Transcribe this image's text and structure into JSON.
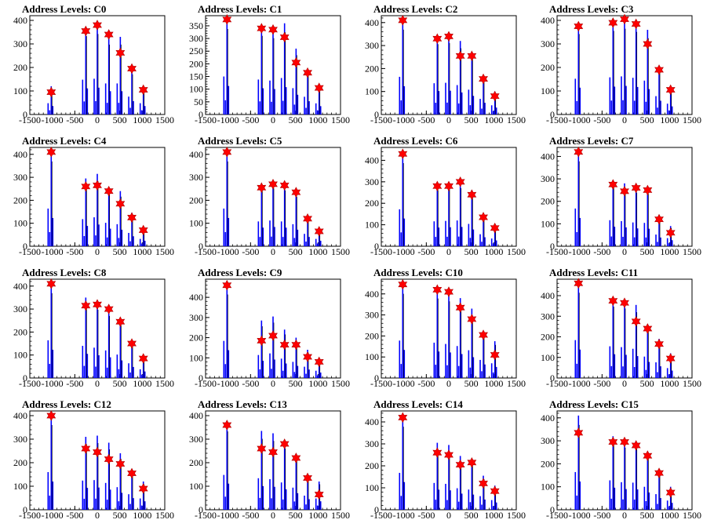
{
  "chart_data": [
    {
      "type": "bar",
      "title": "Address Levels: C0",
      "xlim": [
        -1500,
        1500
      ],
      "ylim": [
        0,
        420
      ],
      "yticks": [
        0,
        100,
        200,
        300,
        400
      ],
      "xtick_labels": [
        "-1500",
        "-1000",
        "-500",
        "0",
        "500",
        "1000",
        "1500"
      ],
      "x": [
        -1024,
        -256,
        0,
        256,
        512,
        768,
        1024
      ],
      "histogram_peaks": [
        120,
        370,
        380,
        330,
        330,
        190,
        120
      ],
      "marker_values": [
        95,
        355,
        380,
        340,
        262,
        195,
        105
      ]
    },
    {
      "type": "bar",
      "title": "Address Levels: C1",
      "xlim": [
        -1500,
        1500
      ],
      "ylim": [
        0,
        390
      ],
      "yticks": [
        0,
        50,
        100,
        150,
        200,
        250,
        300,
        350
      ],
      "xtick_labels": [
        "-1500",
        "-1000",
        "-500",
        "0",
        "500",
        "1000",
        "1500"
      ],
      "x": [
        -1024,
        -256,
        0,
        256,
        512,
        768,
        1024
      ],
      "histogram_peaks": [
        375,
        345,
        335,
        360,
        260,
        175,
        110
      ],
      "marker_values": [
        375,
        340,
        335,
        305,
        205,
        165,
        105
      ]
    },
    {
      "type": "bar",
      "title": "Address Levels: C2",
      "xlim": [
        -1500,
        1500
      ],
      "ylim": [
        0,
        430
      ],
      "yticks": [
        0,
        100,
        200,
        300,
        400
      ],
      "xtick_labels": [
        "-1500",
        "-1000",
        "-500",
        "0",
        "500",
        "1000",
        "1500"
      ],
      "x": [
        -1024,
        -256,
        0,
        256,
        512,
        768,
        1024
      ],
      "histogram_peaks": [
        410,
        340,
        345,
        320,
        270,
        170,
        100
      ],
      "marker_values": [
        410,
        330,
        340,
        255,
        255,
        155,
        80
      ]
    },
    {
      "type": "bar",
      "title": "Address Levels: C3",
      "xlim": [
        -1500,
        1500
      ],
      "ylim": [
        0,
        420
      ],
      "yticks": [
        0,
        100,
        200,
        300,
        400
      ],
      "xtick_labels": [
        "-1500",
        "-1000",
        "-500",
        "0",
        "500",
        "1000",
        "1500"
      ],
      "x": [
        -1024,
        -256,
        0,
        256,
        512,
        768,
        1024
      ],
      "histogram_peaks": [
        380,
        395,
        405,
        390,
        360,
        195,
        115
      ],
      "marker_values": [
        375,
        390,
        405,
        385,
        300,
        190,
        105
      ]
    },
    {
      "type": "bar",
      "title": "Address Levels: C4",
      "xlim": [
        -1500,
        1500
      ],
      "ylim": [
        0,
        430
      ],
      "yticks": [
        0,
        100,
        200,
        300,
        400
      ],
      "xtick_labels": [
        "-1500",
        "-1000",
        "-500",
        "0",
        "500",
        "1000",
        "1500"
      ],
      "x": [
        -1024,
        -256,
        0,
        256,
        512,
        768,
        1024
      ],
      "histogram_peaks": [
        410,
        295,
        315,
        255,
        240,
        145,
        80
      ],
      "marker_values": [
        410,
        260,
        265,
        240,
        185,
        125,
        70
      ]
    },
    {
      "type": "bar",
      "title": "Address Levels: C5",
      "xlim": [
        -1500,
        1500
      ],
      "ylim": [
        0,
        430
      ],
      "yticks": [
        0,
        100,
        200,
        300,
        400
      ],
      "xtick_labels": [
        "-1500",
        "-1000",
        "-500",
        "0",
        "500",
        "1000",
        "1500"
      ],
      "x": [
        -1024,
        -256,
        0,
        256,
        512,
        768,
        1024
      ],
      "histogram_peaks": [
        410,
        270,
        280,
        270,
        240,
        135,
        80
      ],
      "marker_values": [
        410,
        255,
        270,
        265,
        235,
        120,
        65
      ]
    },
    {
      "type": "bar",
      "title": "Address Levels: C6",
      "xlim": [
        -1500,
        1500
      ],
      "ylim": [
        0,
        460
      ],
      "yticks": [
        0,
        100,
        200,
        300,
        400
      ],
      "xtick_labels": [
        "-1500",
        "-1000",
        "-500",
        "0",
        "500",
        "1000",
        "1500"
      ],
      "x": [
        -1024,
        -256,
        0,
        256,
        512,
        768,
        1024
      ],
      "histogram_peaks": [
        430,
        290,
        295,
        300,
        260,
        140,
        90
      ],
      "marker_values": [
        430,
        280,
        280,
        300,
        240,
        135,
        85
      ]
    },
    {
      "type": "bar",
      "title": "Address Levels: C7",
      "xlim": [
        -1500,
        1500
      ],
      "ylim": [
        0,
        440
      ],
      "yticks": [
        0,
        100,
        200,
        300,
        400
      ],
      "xtick_labels": [
        "-1500",
        "-1000",
        "-500",
        "0",
        "500",
        "1000",
        "1500"
      ],
      "x": [
        -1024,
        -256,
        0,
        256,
        512,
        768,
        1024
      ],
      "histogram_peaks": [
        420,
        290,
        280,
        265,
        260,
        130,
        90
      ],
      "marker_values": [
        420,
        275,
        245,
        260,
        250,
        120,
        60
      ]
    },
    {
      "type": "bar",
      "title": "Address Levels: C8",
      "xlim": [
        -1500,
        1500
      ],
      "ylim": [
        0,
        430
      ],
      "yticks": [
        0,
        100,
        200,
        300,
        400
      ],
      "xtick_labels": [
        "-1500",
        "-1000",
        "-500",
        "0",
        "500",
        "1000",
        "1500"
      ],
      "x": [
        -1024,
        -256,
        0,
        256,
        512,
        768,
        1024
      ],
      "histogram_peaks": [
        410,
        350,
        330,
        300,
        255,
        160,
        95
      ],
      "marker_values": [
        410,
        315,
        320,
        300,
        245,
        150,
        85
      ]
    },
    {
      "type": "bar",
      "title": "Address Levels: C9",
      "xlim": [
        -1500,
        1500
      ],
      "ylim": [
        0,
        490
      ],
      "yticks": [
        0,
        100,
        200,
        300,
        400
      ],
      "xtick_labels": [
        "-1500",
        "-1000",
        "-500",
        "0",
        "500",
        "1000",
        "1500"
      ],
      "x": [
        -1024,
        -256,
        0,
        256,
        512,
        768,
        1024
      ],
      "histogram_peaks": [
        460,
        285,
        305,
        240,
        200,
        140,
        90
      ],
      "marker_values": [
        460,
        185,
        210,
        165,
        165,
        105,
        80
      ]
    },
    {
      "type": "bar",
      "title": "Address Levels: C10",
      "xlim": [
        -1500,
        1500
      ],
      "ylim": [
        0,
        470
      ],
      "yticks": [
        0,
        100,
        200,
        300,
        400
      ],
      "xtick_labels": [
        "-1500",
        "-1000",
        "-500",
        "0",
        "500",
        "1000",
        "1500"
      ],
      "x": [
        -1024,
        -256,
        0,
        256,
        512,
        768,
        1024
      ],
      "histogram_peaks": [
        445,
        420,
        405,
        380,
        330,
        215,
        175
      ],
      "marker_values": [
        445,
        420,
        410,
        335,
        280,
        205,
        110
      ]
    },
    {
      "type": "bar",
      "title": "Address Levels: C11",
      "xlim": [
        -1500,
        1500
      ],
      "ylim": [
        0,
        480
      ],
      "yticks": [
        0,
        100,
        200,
        300,
        400
      ],
      "xtick_labels": [
        "-1500",
        "-1000",
        "-500",
        "0",
        "500",
        "1000",
        "1500"
      ],
      "x": [
        -1024,
        -256,
        0,
        256,
        512,
        768,
        1024
      ],
      "histogram_peaks": [
        460,
        385,
        375,
        355,
        260,
        190,
        120
      ],
      "marker_values": [
        460,
        375,
        365,
        275,
        240,
        165,
        95
      ]
    },
    {
      "type": "bar",
      "title": "Address Levels: C12",
      "xlim": [
        -1500,
        1500
      ],
      "ylim": [
        0,
        420
      ],
      "yticks": [
        0,
        100,
        200,
        300,
        400
      ],
      "xtick_labels": [
        "-1500",
        "-1000",
        "-500",
        "0",
        "500",
        "1000",
        "1500"
      ],
      "x": [
        -1024,
        -256,
        0,
        256,
        512,
        768,
        1024
      ],
      "histogram_peaks": [
        400,
        310,
        315,
        285,
        240,
        165,
        120
      ],
      "marker_values": [
        400,
        260,
        245,
        215,
        195,
        155,
        90
      ]
    },
    {
      "type": "bar",
      "title": "Address Levels: C13",
      "xlim": [
        -1500,
        1500
      ],
      "ylim": [
        0,
        420
      ],
      "yticks": [
        0,
        100,
        200,
        300,
        400
      ],
      "xtick_labels": [
        "-1500",
        "-1000",
        "-500",
        "0",
        "500",
        "1000",
        "1500"
      ],
      "x": [
        -1024,
        -256,
        0,
        256,
        512,
        768,
        1024
      ],
      "histogram_peaks": [
        370,
        335,
        325,
        290,
        235,
        150,
        120
      ],
      "marker_values": [
        360,
        260,
        245,
        280,
        220,
        135,
        65
      ]
    },
    {
      "type": "bar",
      "title": "Address Levels: C14",
      "xlim": [
        -1500,
        1500
      ],
      "ylim": [
        0,
        450
      ],
      "yticks": [
        0,
        100,
        200,
        300,
        400
      ],
      "xtick_labels": [
        "-1500",
        "-1000",
        "-500",
        "0",
        "500",
        "1000",
        "1500"
      ],
      "x": [
        -1024,
        -256,
        0,
        256,
        512,
        768,
        1024
      ],
      "histogram_peaks": [
        420,
        305,
        295,
        245,
        230,
        155,
        110
      ],
      "marker_values": [
        420,
        260,
        250,
        205,
        215,
        120,
        85
      ]
    },
    {
      "type": "bar",
      "title": "Address Levels: C15",
      "xlim": [
        -1500,
        1500
      ],
      "ylim": [
        0,
        430
      ],
      "yticks": [
        0,
        100,
        200,
        300,
        400
      ],
      "xtick_labels": [
        "-1500",
        "-1000",
        "-500",
        "0",
        "500",
        "1000",
        "1500"
      ],
      "x": [
        -1024,
        -256,
        0,
        256,
        512,
        768,
        1024
      ],
      "histogram_peaks": [
        410,
        320,
        300,
        295,
        250,
        170,
        100
      ],
      "marker_values": [
        335,
        295,
        295,
        280,
        235,
        160,
        75
      ]
    }
  ],
  "colors": {
    "histogram": "#0000ff",
    "histogram_dark": "#000000",
    "marker": "#ff0000",
    "axis": "#000000"
  }
}
